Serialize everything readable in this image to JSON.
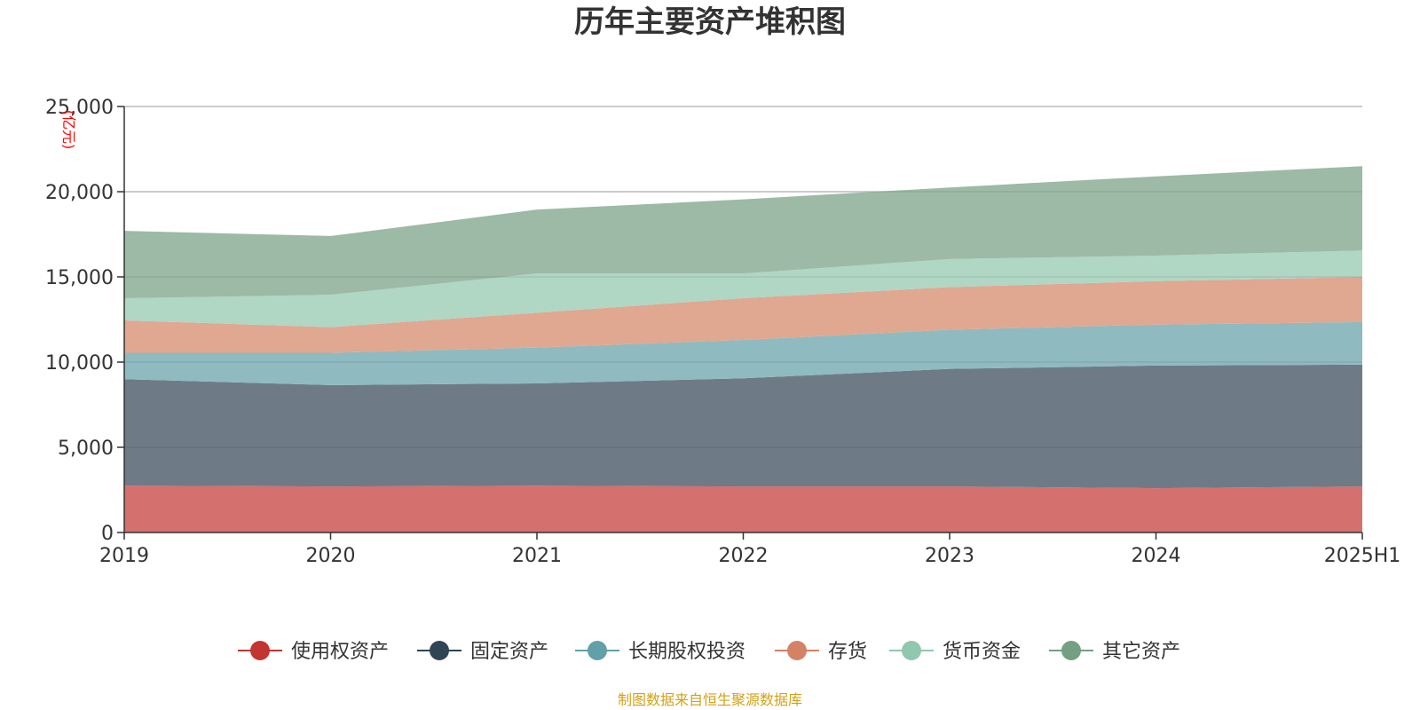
{
  "chart_data": {
    "type": "area",
    "title": "历年主要资产堆积图",
    "ylabel": "(亿元)",
    "ylim": [
      0,
      25000
    ],
    "yticks": [
      "0",
      "5,000",
      "10,000",
      "15,000",
      "20,000",
      "25,000"
    ],
    "yticks_values": [
      0,
      5000,
      10000,
      15000,
      20000,
      25000
    ],
    "categories": [
      "2019",
      "2020",
      "2021",
      "2022",
      "2023",
      "2024",
      "2025H1"
    ],
    "stacked": true,
    "grid": true,
    "legend_position": "bottom",
    "series": [
      {
        "name": "使用权资产",
        "color": "#c23531",
        "fill": "#d4706d",
        "values": [
          2750,
          2700,
          2750,
          2700,
          2700,
          2600,
          2700
        ]
      },
      {
        "name": "固定资产",
        "color": "#2f4554",
        "fill": "#6e7b87",
        "values": [
          6250,
          5950,
          6000,
          6350,
          6900,
          7200,
          7150
        ]
      },
      {
        "name": "长期股权投资",
        "color": "#61a0a8",
        "fill": "#8fbac0",
        "values": [
          1550,
          1900,
          2100,
          2250,
          2300,
          2400,
          2500
        ]
      },
      {
        "name": "存货",
        "color": "#d48265",
        "fill": "#e0a791",
        "values": [
          1900,
          1500,
          2050,
          2450,
          2500,
          2550,
          2650
        ]
      },
      {
        "name": "货币资金",
        "color": "#91c7ae",
        "fill": "#b0d6c4",
        "values": [
          1300,
          1900,
          2300,
          1450,
          1650,
          1500,
          1550
        ]
      },
      {
        "name": "其它资产",
        "color": "#749f83",
        "fill": "#9cbaa6",
        "values": [
          3950,
          3450,
          3750,
          4350,
          4200,
          4650,
          4950
        ]
      }
    ],
    "source": "制图数据来自恒生聚源数据库"
  }
}
